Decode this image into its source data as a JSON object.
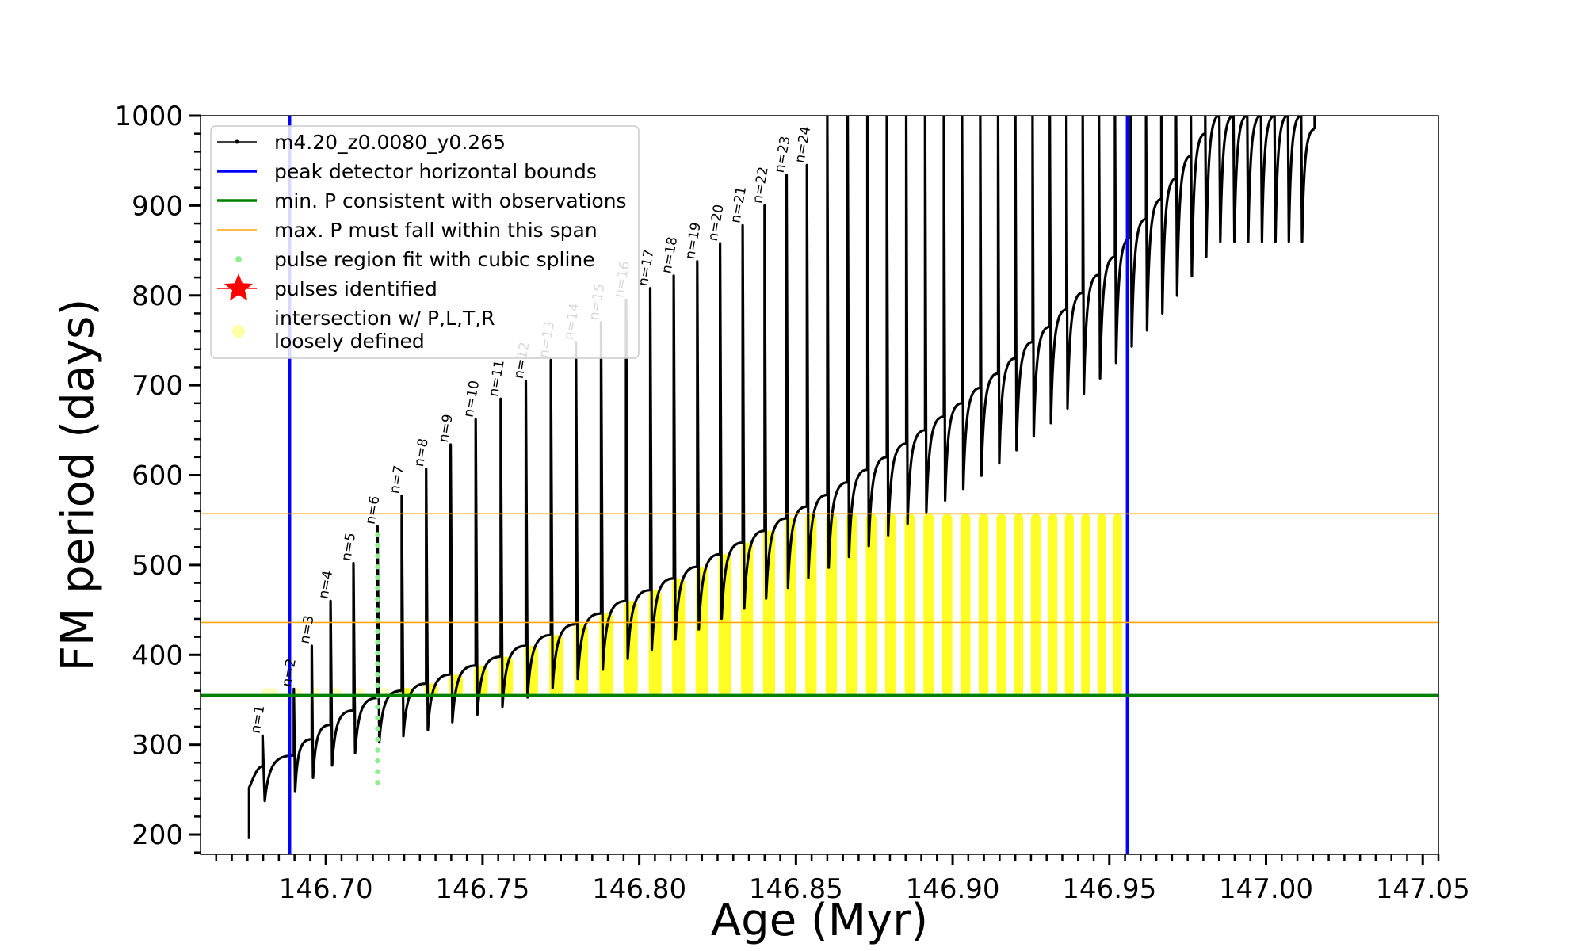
{
  "chart_data": {
    "type": "line",
    "title": "",
    "xlabel": "Age (Myr)",
    "ylabel": "FM period (days)",
    "xlim": [
      146.66,
      147.055
    ],
    "ylim": [
      178,
      1000
    ],
    "xticks": [
      146.7,
      146.75,
      146.8,
      146.85,
      146.9,
      146.95,
      147.0,
      147.05
    ],
    "xtick_labels": [
      "146.70",
      "146.75",
      "146.80",
      "146.85",
      "146.90",
      "146.95",
      "147.00",
      "147.05"
    ],
    "yticks": [
      200,
      300,
      400,
      500,
      600,
      700,
      800,
      900,
      1000
    ],
    "ytick_labels": [
      "200",
      "300",
      "400",
      "500",
      "600",
      "700",
      "800",
      "900",
      "1000"
    ],
    "grid": false,
    "legend_position": "top-left",
    "colors": {
      "model": "#000000",
      "peak_bounds": "#0000ff",
      "min_period": "#008000",
      "max_period": "#ffa500",
      "spline": "#90ee90",
      "pulses": "#ff0000",
      "intersection": "#ffff00"
    },
    "legend": [
      {
        "label": "m4.20_z0.0080_y0.265",
        "kind": "line-marker",
        "color": "#000000"
      },
      {
        "label": "peak detector horizontal bounds",
        "kind": "line",
        "color": "#0000ff"
      },
      {
        "label": "min. P consistent with observations",
        "kind": "line",
        "color": "#008000"
      },
      {
        "label": "max. P must fall within this span",
        "kind": "thin-line",
        "color": "#ffa500"
      },
      {
        "label": "pulse region fit with cubic spline",
        "kind": "dot",
        "color": "#90ee90"
      },
      {
        "label": "pulses identified",
        "kind": "star",
        "color": "#ff0000"
      },
      {
        "label": "intersection w/ P,L,T,R",
        "label2": "loosely defined",
        "kind": "big-dot",
        "color": "#ffff00"
      }
    ],
    "reference_lines": {
      "peak_bounds_x": [
        146.6885,
        146.9557
      ],
      "min_period_y": 355,
      "max_period_span_y": [
        436,
        557
      ]
    },
    "series": {
      "model_pulses": [
        {
          "n": 0,
          "t": 146.6755,
          "end_period": 252,
          "peak": null
        },
        {
          "n": 1,
          "t": 146.6798,
          "end_period": 276,
          "peak": 310
        },
        {
          "n": 2,
          "t": 146.6898,
          "end_period": 288,
          "peak": 362
        },
        {
          "n": 3,
          "t": 146.6955,
          "end_period": 306,
          "peak": 410
        },
        {
          "n": 4,
          "t": 146.7015,
          "end_period": 322,
          "peak": 460
        },
        {
          "n": 5,
          "t": 146.7088,
          "end_period": 338,
          "peak": 502
        },
        {
          "n": 6,
          "t": 146.7165,
          "end_period": 352,
          "peak": 543
        },
        {
          "n": 7,
          "t": 146.7242,
          "end_period": 360,
          "peak": 577
        },
        {
          "n": 8,
          "t": 146.732,
          "end_period": 368,
          "peak": 607
        },
        {
          "n": 9,
          "t": 146.7398,
          "end_period": 378,
          "peak": 634
        },
        {
          "n": 10,
          "t": 146.7478,
          "end_period": 388,
          "peak": 662
        },
        {
          "n": 11,
          "t": 146.7558,
          "end_period": 398,
          "peak": 685
        },
        {
          "n": 12,
          "t": 146.7638,
          "end_period": 410,
          "peak": 705
        },
        {
          "n": 13,
          "t": 146.7718,
          "end_period": 422,
          "peak": 728
        },
        {
          "n": 14,
          "t": 146.7798,
          "end_period": 434,
          "peak": 748
        },
        {
          "n": 15,
          "t": 146.7878,
          "end_period": 446,
          "peak": 770
        },
        {
          "n": 16,
          "t": 146.7958,
          "end_period": 460,
          "peak": 795
        },
        {
          "n": 17,
          "t": 146.8035,
          "end_period": 472,
          "peak": 808
        },
        {
          "n": 18,
          "t": 146.811,
          "end_period": 485,
          "peak": 822
        },
        {
          "n": 19,
          "t": 146.8185,
          "end_period": 498,
          "peak": 838
        },
        {
          "n": 20,
          "t": 146.8258,
          "end_period": 512,
          "peak": 858
        },
        {
          "n": 21,
          "t": 146.833,
          "end_period": 525,
          "peak": 878
        },
        {
          "n": 22,
          "t": 146.84,
          "end_period": 538,
          "peak": 900
        },
        {
          "n": 23,
          "t": 146.847,
          "end_period": 552,
          "peak": 934
        },
        {
          "n": 24,
          "t": 146.8535,
          "end_period": 565,
          "peak": 945
        },
        {
          "n": 25,
          "t": 146.86,
          "end_period": 578,
          "peak": 1000
        },
        {
          "n": 26,
          "t": 146.8665,
          "end_period": 592,
          "peak": 1000
        },
        {
          "n": 27,
          "t": 146.8728,
          "end_period": 606,
          "peak": 1000
        },
        {
          "n": 28,
          "t": 146.879,
          "end_period": 620,
          "peak": 1000
        },
        {
          "n": 29,
          "t": 146.8852,
          "end_period": 635,
          "peak": 1000
        },
        {
          "n": 30,
          "t": 146.8912,
          "end_period": 650,
          "peak": 1000
        },
        {
          "n": 31,
          "t": 146.8972,
          "end_period": 665,
          "peak": 1000
        },
        {
          "n": 32,
          "t": 146.903,
          "end_period": 680,
          "peak": 1000
        },
        {
          "n": 33,
          "t": 146.9088,
          "end_period": 697,
          "peak": 1000
        },
        {
          "n": 34,
          "t": 146.9145,
          "end_period": 713,
          "peak": 1000
        },
        {
          "n": 35,
          "t": 146.92,
          "end_period": 730,
          "peak": 1000
        },
        {
          "n": 36,
          "t": 146.9255,
          "end_period": 748,
          "peak": 1000
        },
        {
          "n": 37,
          "t": 146.931,
          "end_period": 765,
          "peak": 1000
        },
        {
          "n": 38,
          "t": 146.9363,
          "end_period": 784,
          "peak": 1000
        },
        {
          "n": 39,
          "t": 146.9415,
          "end_period": 803,
          "peak": 1000
        },
        {
          "n": 40,
          "t": 146.9467,
          "end_period": 823,
          "peak": 1000
        },
        {
          "n": 41,
          "t": 146.9518,
          "end_period": 843,
          "peak": 1000
        },
        {
          "n": 42,
          "t": 146.9568,
          "end_period": 864,
          "peak": 1000
        },
        {
          "n": 43,
          "t": 146.9617,
          "end_period": 885,
          "peak": 1000
        },
        {
          "n": 44,
          "t": 146.9666,
          "end_period": 907,
          "peak": 1000
        },
        {
          "n": 45,
          "t": 146.9713,
          "end_period": 930,
          "peak": 1000
        },
        {
          "n": 46,
          "t": 146.976,
          "end_period": 955,
          "peak": 1000
        },
        {
          "n": 47,
          "t": 146.9806,
          "end_period": 980,
          "peak": 1000
        },
        {
          "n": 48,
          "t": 146.9851,
          "end_period": 1000,
          "peak": 1000
        },
        {
          "n": 49,
          "t": 146.9896,
          "end_period": 1000,
          "peak": 1000
        },
        {
          "n": 50,
          "t": 146.994,
          "end_period": 1000,
          "peak": 1000
        },
        {
          "n": 51,
          "t": 146.9984,
          "end_period": 1000,
          "peak": 1000
        },
        {
          "n": 52,
          "t": 147.0027,
          "end_period": 1000,
          "peak": 1000
        },
        {
          "n": 53,
          "t": 147.007,
          "end_period": 1000,
          "peak": 1000
        },
        {
          "n": 54,
          "t": 147.0112,
          "end_period": 1000,
          "peak": 1000
        },
        {
          "n": 55,
          "t": 147.0155,
          "end_period": 985,
          "peak": null
        }
      ],
      "pulse_labels": [
        {
          "text": "n=1",
          "t": 146.6798,
          "p": 310
        },
        {
          "text": "n=2",
          "t": 146.6898,
          "p": 362
        },
        {
          "text": "n=3",
          "t": 146.6955,
          "p": 410
        },
        {
          "text": "n=4",
          "t": 146.7015,
          "p": 460
        },
        {
          "text": "n=5",
          "t": 146.7088,
          "p": 502
        },
        {
          "text": "n=6",
          "t": 146.7165,
          "p": 543
        },
        {
          "text": "n=7",
          "t": 146.7242,
          "p": 577
        },
        {
          "text": "n=8",
          "t": 146.732,
          "p": 607
        },
        {
          "text": "n=9",
          "t": 146.7398,
          "p": 634
        },
        {
          "text": "n=10",
          "t": 146.7478,
          "p": 662
        },
        {
          "text": "n=11",
          "t": 146.7558,
          "p": 685
        },
        {
          "text": "n=12",
          "t": 146.7638,
          "p": 705
        },
        {
          "text": "n=13",
          "t": 146.7718,
          "p": 728
        },
        {
          "text": "n=14",
          "t": 146.7798,
          "p": 748
        },
        {
          "text": "n=15",
          "t": 146.7878,
          "p": 770
        },
        {
          "text": "n=16",
          "t": 146.7958,
          "p": 795
        },
        {
          "text": "n=17",
          "t": 146.8035,
          "p": 808
        },
        {
          "text": "n=18",
          "t": 146.811,
          "p": 822
        },
        {
          "text": "n=19",
          "t": 146.8185,
          "p": 838
        },
        {
          "text": "n=20",
          "t": 146.8258,
          "p": 858
        },
        {
          "text": "n=21",
          "t": 146.833,
          "p": 878
        },
        {
          "text": "n=22",
          "t": 146.84,
          "p": 900
        },
        {
          "text": "n=23",
          "t": 146.847,
          "p": 934
        },
        {
          "text": "n=24",
          "t": 146.8535,
          "p": 945
        }
      ],
      "spline_fit": {
        "t": 146.7165,
        "p_range": [
          258,
          543
        ]
      }
    }
  }
}
